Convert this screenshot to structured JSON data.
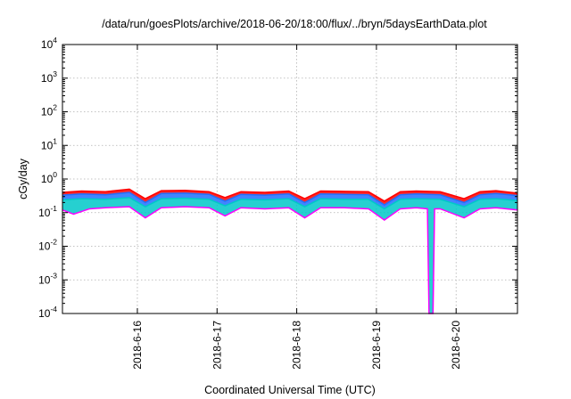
{
  "chart_data": {
    "type": "line",
    "title": "/data/run/goesPlots/archive/2018-06-20/18:00/flux/../bryn/5daysEarthData.plot",
    "xlabel": "Coordinated Universal Time (UTC)",
    "ylabel": "cGy/day",
    "yscale": "log",
    "ylim": [
      0.0001,
      10000
    ],
    "xlim": [
      15.06,
      20.77
    ],
    "grid": true,
    "legend": "none",
    "yticks": [
      {
        "base": "10",
        "exp": "-4",
        "value": 0.0001
      },
      {
        "base": "10",
        "exp": "-3",
        "value": 0.001
      },
      {
        "base": "10",
        "exp": "-2",
        "value": 0.01
      },
      {
        "base": "10",
        "exp": "-1",
        "value": 0.1
      },
      {
        "base": "10",
        "exp": "0",
        "value": 1
      },
      {
        "base": "10",
        "exp": "1",
        "value": 10
      },
      {
        "base": "10",
        "exp": "2",
        "value": 100
      },
      {
        "base": "10",
        "exp": "3",
        "value": 1000
      },
      {
        "base": "10",
        "exp": "4",
        "value": 10000
      }
    ],
    "xticks": [
      {
        "label": "2018-6-16",
        "value": 16
      },
      {
        "label": "2018-6-17",
        "value": 17
      },
      {
        "label": "2018-6-18",
        "value": 18
      },
      {
        "label": "2018-6-19",
        "value": 19
      },
      {
        "label": "2018-6-20",
        "value": 20
      }
    ],
    "series": [
      {
        "color": "#ff0000",
        "x": [
          15.06,
          15.3,
          15.6,
          15.9,
          16.1,
          16.3,
          16.6,
          16.9,
          17.1,
          17.3,
          17.6,
          17.9,
          18.1,
          18.3,
          18.6,
          18.9,
          19.1,
          19.3,
          19.5,
          19.8,
          20.1,
          20.3,
          20.5,
          20.77
        ],
        "y": [
          0.4,
          0.44,
          0.42,
          0.5,
          0.26,
          0.45,
          0.46,
          0.42,
          0.28,
          0.42,
          0.4,
          0.44,
          0.26,
          0.44,
          0.43,
          0.42,
          0.22,
          0.42,
          0.44,
          0.42,
          0.26,
          0.42,
          0.45,
          0.38
        ]
      },
      {
        "color": "#2070ff",
        "x": [
          15.06,
          15.3,
          15.6,
          15.9,
          16.1,
          16.3,
          16.6,
          16.9,
          17.1,
          17.3,
          17.6,
          17.9,
          18.1,
          18.3,
          18.6,
          18.9,
          19.1,
          19.3,
          19.5,
          19.8,
          20.1,
          20.3,
          20.5,
          20.77
        ],
        "y": [
          0.33,
          0.36,
          0.34,
          0.4,
          0.2,
          0.37,
          0.38,
          0.35,
          0.22,
          0.35,
          0.33,
          0.36,
          0.2,
          0.36,
          0.35,
          0.34,
          0.17,
          0.34,
          0.36,
          0.34,
          0.2,
          0.34,
          0.37,
          0.32
        ]
      },
      {
        "color": "#00c8c8",
        "x": [
          15.06,
          15.3,
          15.6,
          15.9,
          16.1,
          16.3,
          16.6,
          16.9,
          17.1,
          17.3,
          17.6,
          17.9,
          18.1,
          18.3,
          18.6,
          18.9,
          19.1,
          19.3,
          19.5,
          19.8,
          20.1,
          20.3,
          20.5,
          20.77
        ],
        "y": [
          0.24,
          0.26,
          0.25,
          0.28,
          0.15,
          0.26,
          0.27,
          0.25,
          0.16,
          0.25,
          0.24,
          0.26,
          0.15,
          0.26,
          0.25,
          0.25,
          0.13,
          0.25,
          0.26,
          0.25,
          0.15,
          0.25,
          0.26,
          0.23
        ]
      },
      {
        "color": "#ff00ff",
        "x": [
          15.06,
          15.2,
          15.4,
          15.6,
          15.9,
          16.1,
          16.3,
          16.6,
          16.9,
          17.1,
          17.3,
          17.6,
          17.9,
          18.1,
          18.3,
          18.6,
          18.9,
          19.1,
          19.3,
          19.5,
          19.64,
          19.66,
          19.71,
          19.73,
          19.8,
          20.1,
          20.3,
          20.5,
          20.77
        ],
        "y": [
          0.12,
          0.09,
          0.13,
          0.14,
          0.15,
          0.07,
          0.14,
          0.15,
          0.14,
          0.08,
          0.14,
          0.13,
          0.14,
          0.07,
          0.14,
          0.14,
          0.13,
          0.06,
          0.13,
          0.14,
          0.13,
          0.0001,
          0.0001,
          0.13,
          0.13,
          0.07,
          0.13,
          0.14,
          0.12
        ]
      }
    ]
  }
}
